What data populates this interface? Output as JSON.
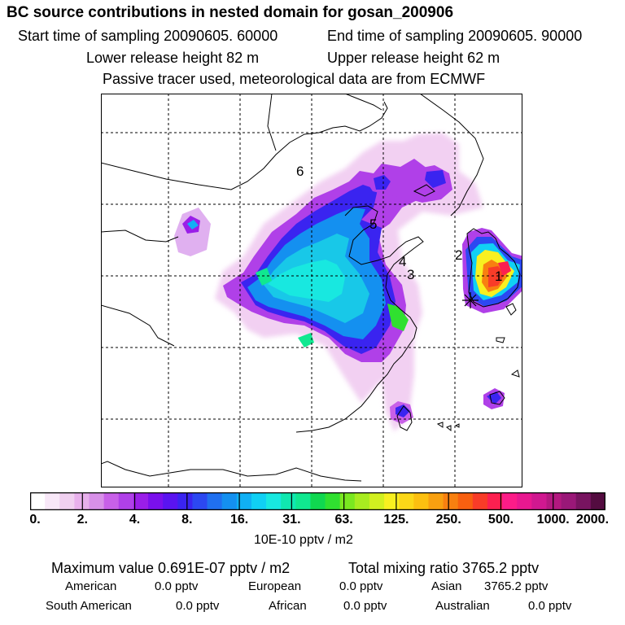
{
  "header": {
    "title": "BC  source contributions in nested domain for gosan_200906",
    "start_time": "Start time of sampling 20090605. 60000",
    "end_time": "End time of sampling 20090605. 90000",
    "lower_height": "Lower release height   82 m",
    "upper_height": "Upper release height   62 m",
    "tracer_note": "Passive tracer used, meteorological data are from ECMWF"
  },
  "map": {
    "region_labels": [
      "1",
      "2",
      "3",
      "4",
      "5",
      "6"
    ],
    "receptor_marker": "star-burst-icon"
  },
  "colorbar": {
    "ticks": [
      "0.",
      "2.",
      "4.",
      "8.",
      "16.",
      "31.",
      "63.",
      "125.",
      "250.",
      "500.",
      "1000.",
      "2000."
    ],
    "colors": [
      "#ffffff",
      "#f8e8f8",
      "#f0d0f0",
      "#e8b0ec",
      "#d890e8",
      "#c860e8",
      "#b040e8",
      "#9a1ee8",
      "#7a10ec",
      "#5a14f0",
      "#3a24f0",
      "#2c48f2",
      "#2070f0",
      "#1490f0",
      "#10b0f4",
      "#10d0f4",
      "#18e8e0",
      "#10e8b0",
      "#10e890",
      "#10d850",
      "#30e030",
      "#7ae820",
      "#a8ec20",
      "#d2f020",
      "#f8f020",
      "#fcd818",
      "#fcc010",
      "#f8a010",
      "#f88010",
      "#f86010",
      "#f83c28",
      "#fc2050",
      "#fc1c88",
      "#e81890",
      "#d01890",
      "#b41880",
      "#9a1878",
      "#781460",
      "#540c40"
    ],
    "unit": "10E-10 pptv / m2"
  },
  "summary": {
    "max_value": "Maximum value  0.691E-07 pptv / m2",
    "total_mixing": "Total mixing ratio     3765.2 pptv",
    "american_label": "American",
    "american_value": "0.0 pptv",
    "european_label": "European",
    "european_value": "0.0 pptv",
    "asian_label": "Asian",
    "asian_value": "3765.2 pptv",
    "south_american_label": "South American",
    "south_american_value": "0.0 pptv",
    "african_label": "African",
    "african_value": "0.0 pptv",
    "australian_label": "Australian",
    "australian_value": "0.0 pptv"
  }
}
